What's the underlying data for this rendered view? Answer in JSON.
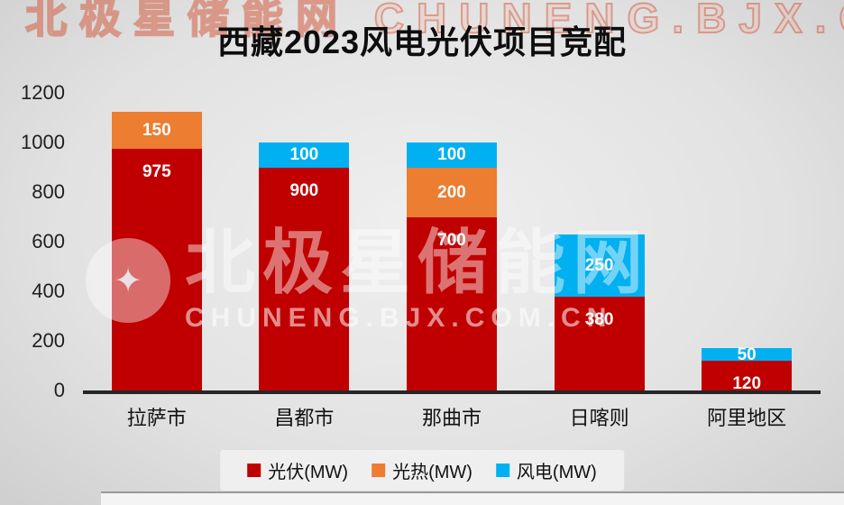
{
  "title": "西藏2023风电光伏项目竞配",
  "watermark": {
    "top_text": "北极星储能网 CHUNENG.BJX.COM.CN",
    "brand_text": "北极星储能网",
    "brand_url": "CHUNENG.BJX.COM.CN",
    "star_icon": "✦"
  },
  "chart_data": {
    "type": "bar",
    "stacked": true,
    "title": "西藏2023风电光伏项目竞配",
    "categories": [
      "拉萨市",
      "昌都市",
      "那曲市",
      "日喀则",
      "阿里地区"
    ],
    "series": [
      {
        "name": "光伏(MW)",
        "color": "#C00000",
        "values": [
          975,
          900,
          700,
          380,
          120
        ]
      },
      {
        "name": "光热(MW)",
        "color": "#ED7D31",
        "values": [
          150,
          0,
          200,
          0,
          0
        ]
      },
      {
        "name": "风电(MW)",
        "color": "#00B0F0",
        "values": [
          0,
          100,
          100,
          250,
          50
        ]
      }
    ],
    "totals": [
      1125,
      1000,
      1000,
      630,
      170
    ],
    "ylim": [
      0,
      1200
    ],
    "yticks": [
      0,
      200,
      400,
      600,
      800,
      1000,
      1200
    ],
    "grid": false,
    "legend_position": "bottom",
    "data_labels": true
  }
}
